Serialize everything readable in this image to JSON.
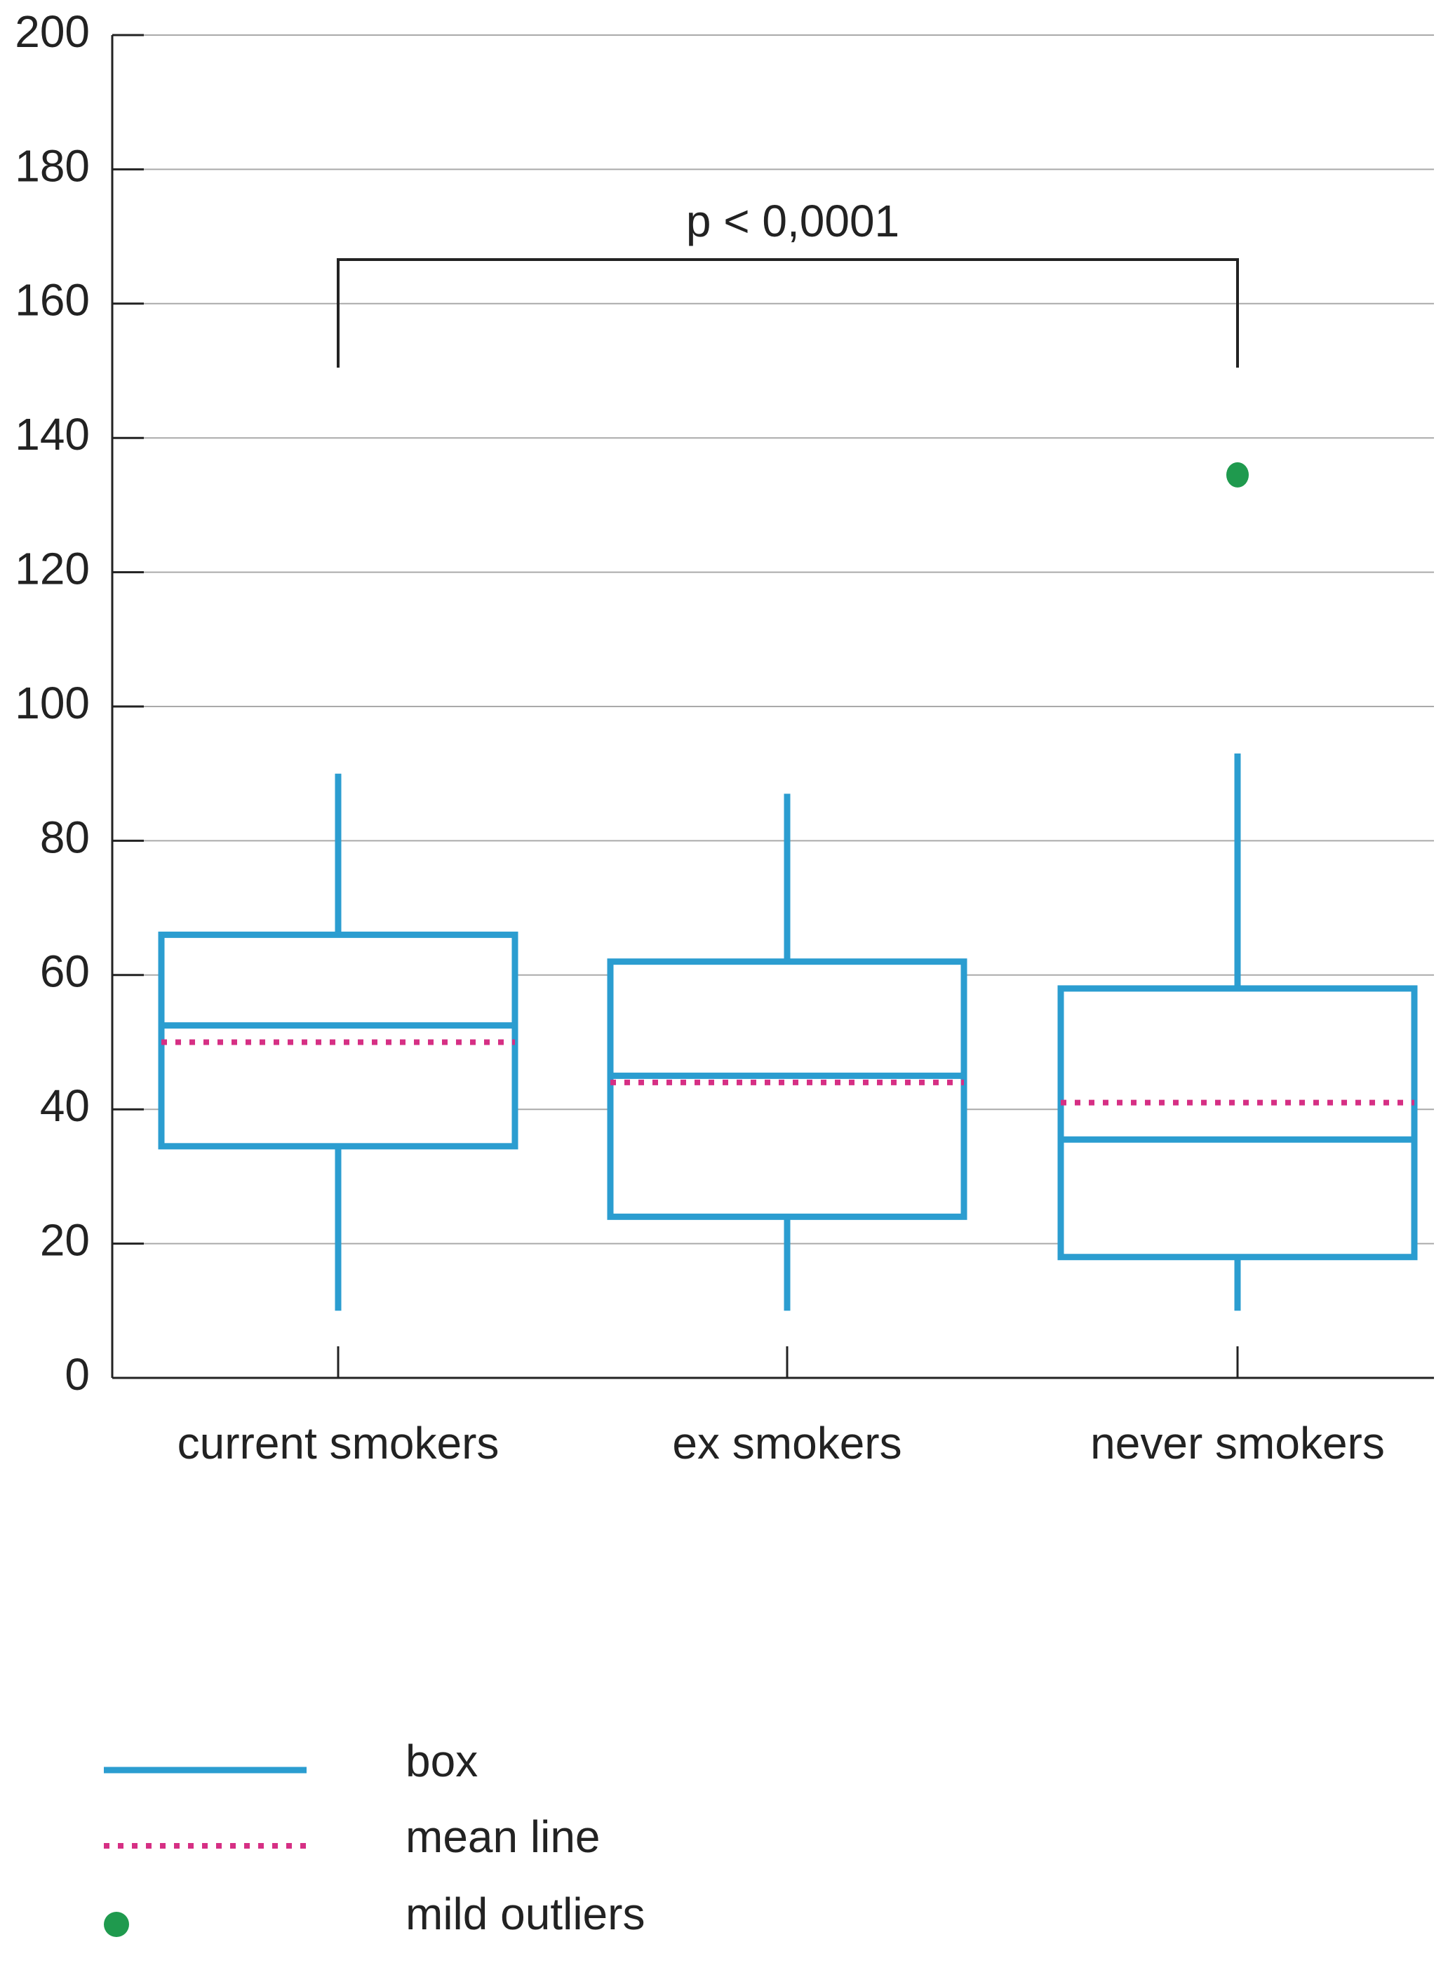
{
  "chart_data": {
    "type": "box",
    "categories": [
      "current smokers",
      "ex smokers",
      "never smokers"
    ],
    "boxes": [
      {
        "whislo": 10,
        "q1": 34.5,
        "med": 52.5,
        "mean": 50,
        "q3": 66,
        "whishi": 90,
        "outliers": []
      },
      {
        "whislo": 10,
        "q1": 24,
        "med": 45,
        "mean": 44,
        "q3": 62,
        "whishi": 87,
        "outliers": []
      },
      {
        "whislo": 10,
        "q1": 18,
        "med": 35.5,
        "mean": 41,
        "q3": 58,
        "whishi": 93,
        "outliers": [
          134.5
        ]
      }
    ],
    "ylim": [
      0,
      200
    ],
    "yticks": [
      0,
      20,
      40,
      60,
      80,
      100,
      120,
      140,
      160,
      180,
      200
    ],
    "grid": true,
    "annotation": "p < 0,0001",
    "legend": {
      "box": "box",
      "mean": "mean line",
      "outlier": "mild outliers"
    },
    "colors": {
      "box": "#2b9dd0",
      "mean": "#d62f84",
      "outlier": "#1f9a4e"
    }
  }
}
